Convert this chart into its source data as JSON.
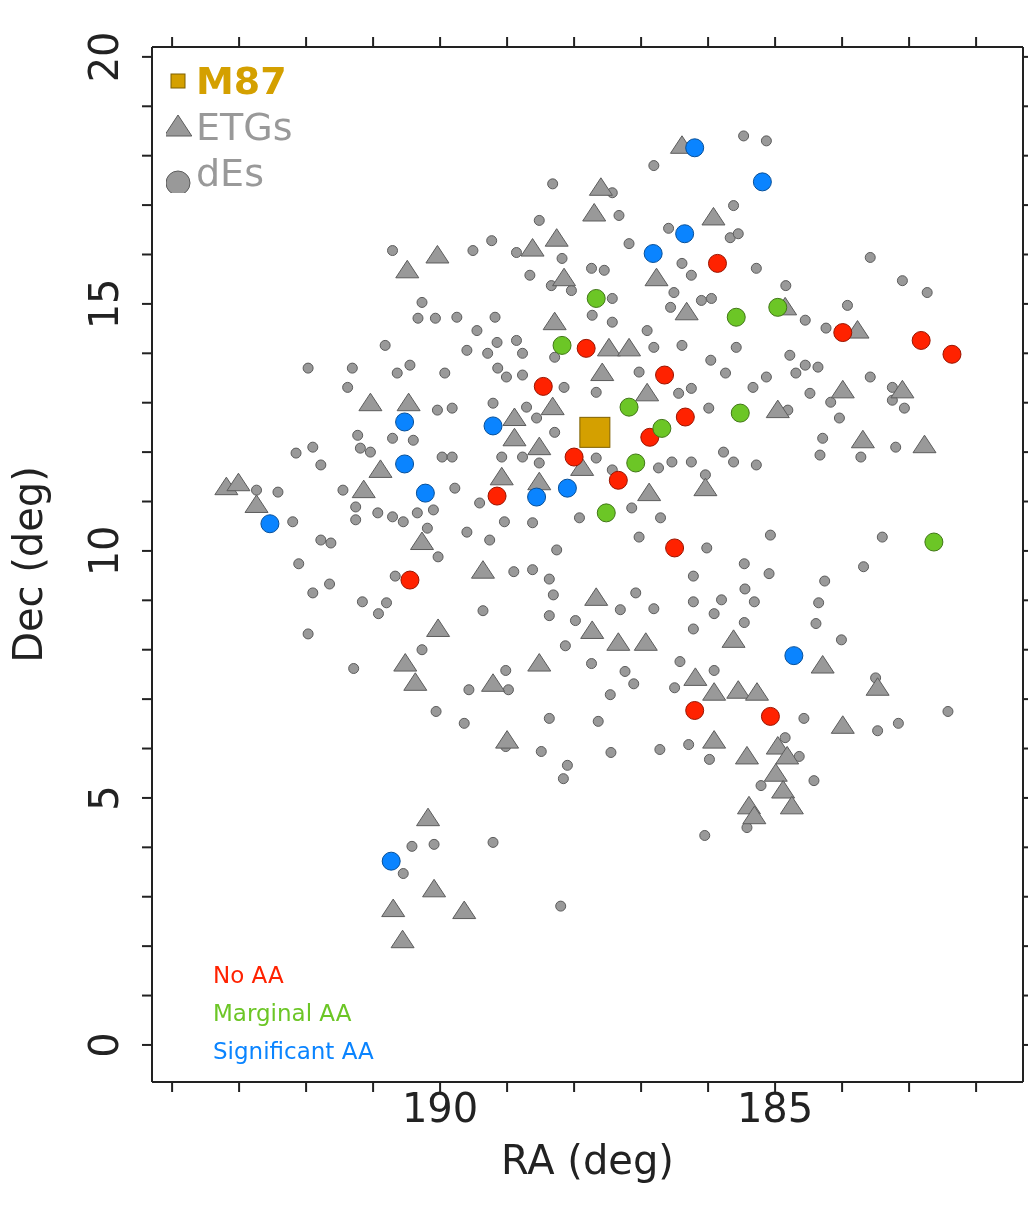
{
  "chart_data": {
    "type": "scatter",
    "xlabel": "RA (deg)",
    "ylabel": "Dec (deg)",
    "xlim": [
      194.3,
      181.3
    ],
    "ylim": [
      -0.75,
      20.2
    ],
    "xticks": [
      {
        "value": 194,
        "label": null
      },
      {
        "value": 193,
        "label": null
      },
      {
        "value": 192,
        "label": null
      },
      {
        "value": 191,
        "label": null
      },
      190,
      {
        "value": 189,
        "label": null
      },
      {
        "value": 188,
        "label": null
      },
      {
        "value": 187,
        "label": null
      },
      {
        "value": 186,
        "label": null
      },
      185,
      {
        "value": 184,
        "label": null
      },
      {
        "value": 183,
        "label": null
      },
      {
        "value": 182,
        "label": null
      }
    ],
    "yticks": [
      0,
      {
        "value": 1,
        "label": null
      },
      {
        "value": 2,
        "label": null
      },
      {
        "value": 3,
        "label": null
      },
      {
        "value": 4,
        "label": null
      },
      5,
      {
        "value": 6,
        "label": null
      },
      {
        "value": 7,
        "label": null
      },
      {
        "value": 8,
        "label": null
      },
      {
        "value": 9,
        "label": null
      },
      10,
      {
        "value": 11,
        "label": null
      },
      {
        "value": 12,
        "label": null
      },
      {
        "value": 13,
        "label": null
      },
      {
        "value": 14,
        "label": null
      },
      15,
      {
        "value": 16,
        "label": null
      },
      {
        "value": 17,
        "label": null
      },
      {
        "value": 18,
        "label": null
      },
      {
        "value": 19,
        "label": null
      },
      20
    ],
    "legend": "top left",
    "series": [
      {
        "name": "dEs",
        "color": "#999999",
        "marker": "circle",
        "x": [
          190.71,
          190.27,
          190.33,
          190.07,
          190.82,
          191.97,
          191.31,
          191.38,
          190.64,
          190.45,
          189.93,
          190.04,
          191.23,
          190.71,
          190.4,
          192.15,
          191.9,
          191.78,
          191.19,
          191.04,
          189.97,
          192.74,
          192.42,
          191.45,
          192.2,
          191.26,
          191.26,
          190.93,
          190.71,
          190.55,
          190.34,
          190.1,
          190.19,
          191.78,
          191.63,
          192.11,
          191.65,
          191.9,
          191.16,
          190.8,
          190.92,
          191.97,
          190.67,
          190.03,
          190.27,
          191.29,
          190.06,
          190.42,
          190.09,
          190.55,
          186.81,
          188.32,
          187.43,
          187.33,
          188.52,
          185.62,
          189.23,
          189.51,
          188.86,
          187.18,
          186.59,
          185.67,
          188.18,
          188.66,
          187.74,
          187.55,
          186.39,
          186.25,
          188.34,
          188.04,
          187.43,
          186.51,
          186.1,
          185.95,
          186.56,
          187.73,
          187.43,
          189.75,
          189.18,
          189.45,
          188.86,
          189.15,
          189.6,
          189.29,
          188.77,
          188.29,
          186.91,
          186.81,
          186.39,
          185.96,
          185.74,
          189.14,
          189.01,
          188.77,
          188.15,
          187.67,
          187.03,
          186.44,
          186.25,
          185.99,
          189.82,
          189.21,
          188.71,
          188.56,
          188.29,
          189.82,
          189.08,
          188.77,
          188.52,
          187.67,
          187.43,
          186.74,
          186.54,
          186.25,
          186.04,
          185.77,
          189.78,
          189.41,
          189.04,
          188.62,
          187.92,
          187.14,
          186.71,
          189.6,
          189.26,
          188.26,
          187.03,
          186.02,
          185.47,
          185.13,
          185.55,
          185.28,
          184.84,
          183.58,
          183.1,
          182.73,
          183.92,
          184.55,
          184.24,
          185.58,
          184.78,
          184.55,
          184.36,
          184.69,
          185.13,
          185.33,
          184.48,
          183.58,
          183.25,
          183.25,
          183.07,
          184.17,
          184.04,
          184.81,
          184.29,
          184.33,
          183.72,
          183.2,
          185.62,
          185.28,
          185.07,
          183.4,
          188.9,
          188.62,
          188.37,
          188.31,
          189.36,
          188.37,
          187.98,
          187.31,
          187.08,
          186.81,
          186.22,
          186.22,
          185.8,
          185.91,
          186.22,
          188.13,
          187.74,
          187.24,
          187.11,
          187.46,
          189.02,
          189.57,
          188.98,
          186.42,
          186.5,
          185.91,
          189.64,
          188.37,
          187.64,
          189.02,
          188.49,
          188.1,
          188.16,
          187.45,
          186.72,
          186.29,
          185.98,
          189.21,
          186.05,
          188.2,
          185.46,
          185.09,
          184.26,
          183.68,
          185.45,
          185.31,
          184.35,
          184.39,
          185.46,
          184.01,
          183.5,
          182.42,
          184.57,
          183.47,
          183.16,
          184.85,
          184.64,
          184.42,
          185.21,
          185.42
        ],
        "values": [
          16.08,
          15.03,
          14.71,
          14.71,
          14.16,
          13.7,
          13.7,
          13.31,
          13.6,
          13.76,
          13.6,
          12.85,
          12.34,
          12.28,
          12.24,
          11.98,
          12.1,
          11.74,
          12.08,
          12.0,
          11.9,
          11.23,
          11.19,
          11.23,
          10.59,
          10.89,
          10.63,
          10.77,
          10.69,
          10.59,
          10.77,
          10.83,
          10.46,
          10.22,
          10.16,
          9.74,
          9.33,
          9.15,
          8.97,
          8.95,
          8.73,
          8.32,
          9.49,
          9.88,
          8.0,
          7.62,
          6.75,
          4.02,
          4.06,
          3.47,
          17.8,
          17.43,
          17.25,
          16.79,
          16.69,
          16.99,
          16.28,
          16.08,
          16.04,
          16.22,
          16.53,
          16.34,
          15.92,
          15.58,
          15.72,
          15.68,
          15.82,
          15.58,
          15.37,
          15.27,
          15.11,
          15.23,
          15.07,
          15.11,
          14.93,
          14.77,
          14.63,
          14.73,
          14.73,
          14.46,
          14.26,
          14.22,
          14.06,
          14.0,
          14.0,
          13.92,
          14.46,
          14.12,
          14.16,
          13.86,
          13.6,
          13.7,
          13.52,
          13.56,
          13.31,
          13.21,
          13.62,
          13.19,
          13.29,
          12.89,
          12.89,
          12.99,
          12.91,
          12.69,
          12.4,
          11.9,
          11.9,
          11.9,
          11.78,
          11.88,
          11.64,
          11.68,
          11.8,
          11.8,
          11.54,
          12.0,
          11.27,
          10.97,
          10.59,
          10.57,
          10.67,
          10.87,
          10.67,
          10.38,
          10.22,
          10.02,
          10.28,
          10.06,
          18.4,
          18.3,
          16.42,
          15.72,
          15.37,
          15.94,
          15.47,
          15.23,
          14.97,
          14.67,
          14.51,
          14.12,
          13.96,
          13.76,
          13.72,
          13.6,
          13.52,
          13.31,
          13.19,
          13.52,
          13.31,
          13.05,
          12.89,
          13.01,
          12.69,
          12.85,
          12.28,
          11.94,
          11.9,
          12.1,
          11.8,
          11.74,
          10.32,
          10.28,
          9.58,
          9.62,
          9.43,
          9.11,
          8.79,
          8.69,
          8.59,
          8.81,
          9.15,
          8.83,
          9.49,
          8.97,
          9.01,
          8.73,
          8.42,
          8.08,
          7.72,
          7.56,
          7.31,
          7.09,
          7.58,
          7.19,
          7.19,
          7.76,
          7.23,
          7.58,
          6.51,
          6.61,
          6.55,
          6.04,
          5.94,
          5.66,
          5.39,
          5.92,
          5.98,
          6.08,
          5.78,
          4.1,
          4.24,
          2.81,
          9.74,
          9.54,
          9.39,
          9.68,
          9.23,
          8.97,
          8.95,
          8.53,
          8.55,
          8.2,
          7.43,
          6.75,
          6.61,
          6.36,
          6.51,
          6.22,
          5.84,
          5.35,
          5.25,
          4.4
        ]
      },
      {
        "name": "ETGs",
        "color": "#999999",
        "marker": "triangle",
        "x": [
          186.39,
          187.6,
          187.7,
          185.92,
          188.26,
          188.62,
          190.04,
          190.49,
          188.15,
          186.77,
          186.32,
          188.29,
          184.85,
          183.77,
          187.48,
          187.18,
          187.58,
          186.91,
          183.99,
          183.1,
          191.04,
          190.47,
          188.32,
          184.96,
          188.89,
          188.89,
          183.69,
          182.77,
          188.52,
          187.88,
          190.89,
          189.08,
          188.52,
          193.19,
          193.01,
          186.04,
          191.14,
          186.88,
          192.74,
          190.27,
          189.36,
          187.67,
          190.03,
          187.73,
          187.34,
          186.93,
          185.62,
          188.52,
          190.52,
          184.29,
          190.37,
          189.21,
          186.19,
          185.91,
          185.55,
          185.27,
          183.47,
          183.99,
          189.0,
          185.91,
          184.96,
          185.42,
          184.82,
          184.99,
          184.88,
          185.39,
          184.75,
          185.31,
          190.18,
          190.09,
          190.7,
          189.64,
          190.56
        ],
        "values": [
          18.2,
          17.35,
          16.83,
          16.75,
          16.32,
          16.12,
          15.98,
          15.68,
          15.52,
          15.52,
          14.83,
          14.63,
          14.93,
          14.46,
          14.1,
          14.1,
          13.6,
          13.19,
          13.25,
          13.25,
          12.99,
          12.99,
          12.91,
          12.85,
          12.69,
          12.28,
          12.24,
          12.14,
          12.1,
          11.68,
          11.64,
          11.49,
          11.39,
          11.29,
          11.37,
          11.27,
          11.23,
          11.17,
          10.93,
          10.18,
          9.6,
          9.05,
          8.42,
          8.38,
          8.14,
          8.14,
          8.2,
          7.72,
          7.72,
          7.68,
          7.33,
          7.31,
          7.43,
          7.13,
          7.17,
          7.13,
          7.23,
          6.46,
          6.16,
          6.16,
          6.04,
          5.84,
          5.84,
          5.49,
          5.15,
          4.83,
          4.83,
          4.63,
          4.59,
          3.15,
          2.75,
          2.71,
          2.12
        ]
      },
      {
        "name": "M87",
        "color": "#d4a000",
        "marker": "square",
        "x": [
          187.69
        ],
        "values": [
          12.4
        ]
      },
      {
        "name": "No AA",
        "color": "#ff2200",
        "marker": "circle",
        "x": [
          185.86,
          183.99,
          182.82,
          182.36,
          187.82,
          188.46,
          186.65,
          188.0,
          186.87,
          186.34,
          187.34,
          189.15,
          186.5,
          190.45,
          186.2,
          185.07
        ],
        "values": [
          15.82,
          14.42,
          14.26,
          13.98,
          14.1,
          13.33,
          13.56,
          11.9,
          12.3,
          12.71,
          11.43,
          11.11,
          10.06,
          9.41,
          6.77,
          6.65
        ]
      },
      {
        "name": "Marginal AA",
        "color": "#6cc626",
        "marker": "circle",
        "x": [
          187.67,
          188.18,
          187.18,
          186.69,
          187.08,
          187.52,
          185.58,
          184.96,
          185.52,
          182.63
        ],
        "values": [
          15.11,
          14.16,
          12.91,
          12.48,
          11.78,
          10.77,
          14.73,
          14.93,
          12.79,
          10.18
        ]
      },
      {
        "name": "Significant AA",
        "color": "#0a84ff",
        "marker": "circle",
        "x": [
          186.2,
          185.19,
          186.35,
          186.82,
          190.53,
          189.21,
          190.53,
          190.22,
          188.56,
          188.1,
          192.54,
          184.72,
          190.73
        ],
        "values": [
          18.16,
          17.47,
          16.42,
          16.02,
          12.61,
          12.53,
          11.76,
          11.17,
          11.09,
          11.27,
          10.55,
          7.88,
          3.72
        ]
      }
    ]
  }
}
